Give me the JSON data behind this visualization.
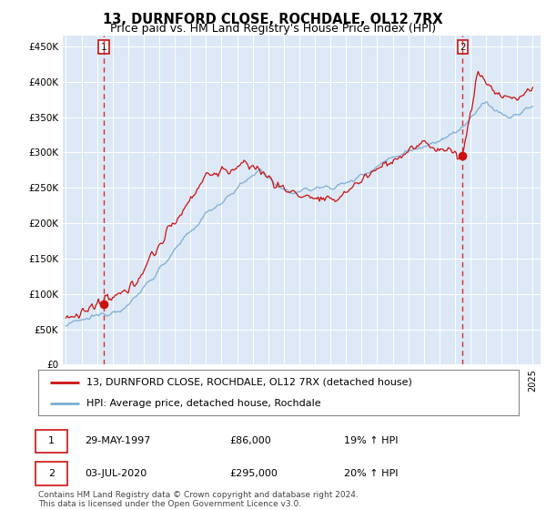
{
  "title": "13, DURNFORD CLOSE, ROCHDALE, OL12 7RX",
  "subtitle": "Price paid vs. HM Land Registry's House Price Index (HPI)",
  "yticks": [
    0,
    50000,
    100000,
    150000,
    200000,
    250000,
    300000,
    350000,
    400000,
    450000
  ],
  "ytick_labels": [
    "£0",
    "£50K",
    "£100K",
    "£150K",
    "£200K",
    "£250K",
    "£300K",
    "£350K",
    "£400K",
    "£450K"
  ],
  "ylim": [
    0,
    465000
  ],
  "background_color": "#ffffff",
  "plot_bg_color": "#dce8f5",
  "grid_color": "#ffffff",
  "hpi_color": "#7dadd4",
  "price_color": "#cc1111",
  "sale1_year": 1997.41,
  "sale1_price": 86000,
  "sale2_year": 2020.5,
  "sale2_price": 295000,
  "legend_label1": "13, DURNFORD CLOSE, ROCHDALE, OL12 7RX (detached house)",
  "legend_label2": "HPI: Average price, detached house, Rochdale",
  "footer": "Contains HM Land Registry data © Crown copyright and database right 2024.\nThis data is licensed under the Open Government Licence v3.0.",
  "title_fontsize": 10.5,
  "subtitle_fontsize": 9,
  "tick_fontsize": 7.5,
  "legend_fontsize": 8,
  "footer_fontsize": 6.5
}
